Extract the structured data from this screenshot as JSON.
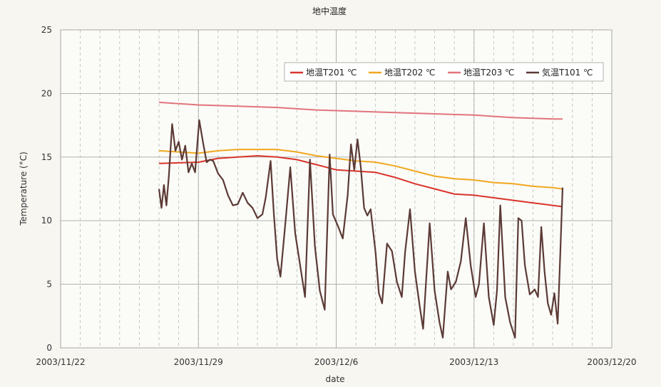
{
  "chart_data": {
    "type": "line",
    "title": "地中温度",
    "xlabel": "date",
    "ylabel": "Temperature (°C)",
    "ylim": [
      0,
      25
    ],
    "yticks": [
      "0",
      "5",
      "10",
      "15",
      "20",
      "25"
    ],
    "xlim": [
      "2003/11/22",
      "2003/12/20"
    ],
    "xticks": [
      "2003/11/22",
      "2003/11/29",
      "2003/12/6",
      "2003/12/13",
      "2003/12/20"
    ],
    "grid": true,
    "legend_position": "top-right",
    "series": [
      {
        "name": "地温T201 ℃",
        "color": "#d9342b",
        "points": [
          [
            "2003/11/27",
            14.5
          ],
          [
            "2003/11/29",
            14.6
          ],
          [
            "2003/11/30",
            14.9
          ],
          [
            "2003/12/1",
            15.0
          ],
          [
            "2003/12/2",
            15.1
          ],
          [
            "2003/12/3",
            15.0
          ],
          [
            "2003/12/4",
            14.8
          ],
          [
            "2003/12/5",
            14.4
          ],
          [
            "2003/12/6",
            14.0
          ],
          [
            "2003/12/7",
            13.9
          ],
          [
            "2003/12/8",
            13.8
          ],
          [
            "2003/12/9",
            13.4
          ],
          [
            "2003/12/10",
            12.9
          ],
          [
            "2003/12/11",
            12.5
          ],
          [
            "2003/12/12",
            12.1
          ],
          [
            "2003/12/13",
            12.0
          ],
          [
            "2003/12/14",
            11.8
          ],
          [
            "2003/12/15",
            11.6
          ],
          [
            "2003/12/16",
            11.4
          ],
          [
            "2003/12/17",
            11.2
          ],
          [
            "2003/12/17 12:00",
            11.1
          ]
        ]
      },
      {
        "name": "地温T202 ℃",
        "color": "#f0a820",
        "points": [
          [
            "2003/11/27",
            15.5
          ],
          [
            "2003/11/28",
            15.4
          ],
          [
            "2003/11/29",
            15.3
          ],
          [
            "2003/11/30",
            15.5
          ],
          [
            "2003/12/1",
            15.6
          ],
          [
            "2003/12/2",
            15.6
          ],
          [
            "2003/12/3",
            15.6
          ],
          [
            "2003/12/4",
            15.4
          ],
          [
            "2003/12/5",
            15.1
          ],
          [
            "2003/12/6",
            14.9
          ],
          [
            "2003/12/7",
            14.7
          ],
          [
            "2003/12/8",
            14.6
          ],
          [
            "2003/12/9",
            14.3
          ],
          [
            "2003/12/10",
            13.9
          ],
          [
            "2003/12/11",
            13.5
          ],
          [
            "2003/12/12",
            13.3
          ],
          [
            "2003/12/13",
            13.2
          ],
          [
            "2003/12/14",
            13.0
          ],
          [
            "2003/12/15",
            12.9
          ],
          [
            "2003/12/16",
            12.7
          ],
          [
            "2003/12/17",
            12.6
          ],
          [
            "2003/12/17 12:00",
            12.5
          ]
        ]
      },
      {
        "name": "地温T203 ℃",
        "color": "#e2747c",
        "points": [
          [
            "2003/11/27",
            19.3
          ],
          [
            "2003/11/29",
            19.1
          ],
          [
            "2003/12/1",
            19.0
          ],
          [
            "2003/12/3",
            18.9
          ],
          [
            "2003/12/5",
            18.7
          ],
          [
            "2003/12/7",
            18.6
          ],
          [
            "2003/12/9",
            18.5
          ],
          [
            "2003/12/11",
            18.4
          ],
          [
            "2003/12/13",
            18.3
          ],
          [
            "2003/12/15",
            18.1
          ],
          [
            "2003/12/17",
            18.0
          ],
          [
            "2003/12/17 12:00",
            18.0
          ]
        ]
      },
      {
        "name": "気温T101 ℃",
        "color": "#5b3a36",
        "points": [
          [
            "2003/11/27 00:00",
            12.5
          ],
          [
            "2003/11/27 03:00",
            11.0
          ],
          [
            "2003/11/27 06:00",
            12.8
          ],
          [
            "2003/11/27 09:00",
            11.2
          ],
          [
            "2003/11/27 12:00",
            13.5
          ],
          [
            "2003/11/27 16:00",
            17.6
          ],
          [
            "2003/11/27 20:00",
            15.5
          ],
          [
            "2003/11/28 00:00",
            16.2
          ],
          [
            "2003/11/28 04:00",
            14.8
          ],
          [
            "2003/11/28 08:00",
            15.9
          ],
          [
            "2003/11/28 12:00",
            13.8
          ],
          [
            "2003/11/28 16:00",
            14.5
          ],
          [
            "2003/11/28 20:00",
            13.8
          ],
          [
            "2003/11/29 01:00",
            17.9
          ],
          [
            "2003/11/29 06:00",
            16.0
          ],
          [
            "2003/11/29 10:00",
            14.6
          ],
          [
            "2003/11/29 14:00",
            14.8
          ],
          [
            "2003/11/29 18:00",
            14.7
          ],
          [
            "2003/11/30 00:00",
            13.7
          ],
          [
            "2003/11/30 06:00",
            13.2
          ],
          [
            "2003/11/30 12:00",
            12.0
          ],
          [
            "2003/11/30 18:00",
            11.2
          ],
          [
            "2003/12/1 00:00",
            11.3
          ],
          [
            "2003/12/1 06:00",
            12.2
          ],
          [
            "2003/12/1 12:00",
            11.4
          ],
          [
            "2003/12/1 18:00",
            11.0
          ],
          [
            "2003/12/2 00:00",
            10.2
          ],
          [
            "2003/12/2 06:00",
            10.5
          ],
          [
            "2003/12/2 10:00",
            11.8
          ],
          [
            "2003/12/2 16:00",
            14.7
          ],
          [
            "2003/12/2 20:00",
            10.5
          ],
          [
            "2003/12/3 00:00",
            7.0
          ],
          [
            "2003/12/3 04:00",
            5.6
          ],
          [
            "2003/12/3 10:00",
            9.8
          ],
          [
            "2003/12/3 16:00",
            14.2
          ],
          [
            "2003/12/3 22:00",
            9.0
          ],
          [
            "2003/12/4 04:00",
            6.5
          ],
          [
            "2003/12/4 10:00",
            4.0
          ],
          [
            "2003/12/4 16:00",
            14.8
          ],
          [
            "2003/12/4 22:00",
            8.0
          ],
          [
            "2003/12/5 04:00",
            4.5
          ],
          [
            "2003/12/5 10:00",
            3.0
          ],
          [
            "2003/12/5 16:00",
            15.2
          ],
          [
            "2003/12/5 20:00",
            10.5
          ],
          [
            "2003/12/6 02:00",
            9.6
          ],
          [
            "2003/12/6 08:00",
            8.6
          ],
          [
            "2003/12/6 14:00",
            12.0
          ],
          [
            "2003/12/6 18:00",
            16.0
          ],
          [
            "2003/12/6 22:00",
            14.0
          ],
          [
            "2003/12/7 02:00",
            16.4
          ],
          [
            "2003/12/7 06:00",
            14.2
          ],
          [
            "2003/12/7 10:00",
            11.0
          ],
          [
            "2003/12/7 14:00",
            10.4
          ],
          [
            "2003/12/7 18:00",
            10.9
          ],
          [
            "2003/12/8 00:00",
            7.5
          ],
          [
            "2003/12/8 04:00",
            4.3
          ],
          [
            "2003/12/8 08:00",
            3.5
          ],
          [
            "2003/12/8 14:00",
            8.2
          ],
          [
            "2003/12/8 20:00",
            7.6
          ],
          [
            "2003/12/9 02:00",
            5.2
          ],
          [
            "2003/12/9 08:00",
            4.0
          ],
          [
            "2003/12/9 12:00",
            7.5
          ],
          [
            "2003/12/9 18:00",
            10.9
          ],
          [
            "2003/12/10 00:00",
            6.0
          ],
          [
            "2003/12/10 06:00",
            3.2
          ],
          [
            "2003/12/10 10:00",
            1.5
          ],
          [
            "2003/12/10 18:00",
            9.8
          ],
          [
            "2003/12/11 00:00",
            4.5
          ],
          [
            "2003/12/11 06:00",
            2.0
          ],
          [
            "2003/12/11 10:00",
            0.8
          ],
          [
            "2003/12/11 16:00",
            6.0
          ],
          [
            "2003/12/11 20:00",
            4.6
          ],
          [
            "2003/12/12 02:00",
            5.2
          ],
          [
            "2003/12/12 08:00",
            6.8
          ],
          [
            "2003/12/12 14:00",
            10.2
          ],
          [
            "2003/12/12 20:00",
            6.5
          ],
          [
            "2003/12/13 02:00",
            4.0
          ],
          [
            "2003/12/13 06:00",
            5.0
          ],
          [
            "2003/12/13 12:00",
            9.8
          ],
          [
            "2003/12/13 18:00",
            4.0
          ],
          [
            "2003/12/14 00:00",
            1.8
          ],
          [
            "2003/12/14 04:00",
            4.5
          ],
          [
            "2003/12/14 08:00",
            11.2
          ],
          [
            "2003/12/14 14:00",
            4.0
          ],
          [
            "2003/12/14 20:00",
            2.0
          ],
          [
            "2003/12/15 02:00",
            0.8
          ],
          [
            "2003/12/15 06:00",
            10.2
          ],
          [
            "2003/12/15 10:00",
            10.0
          ],
          [
            "2003/12/15 14:00",
            6.5
          ],
          [
            "2003/12/15 20:00",
            4.2
          ],
          [
            "2003/12/16 02:00",
            4.6
          ],
          [
            "2003/12/16 06:00",
            4.0
          ],
          [
            "2003/12/16 10:00",
            9.5
          ],
          [
            "2003/12/16 14:00",
            6.0
          ],
          [
            "2003/12/16 18:00",
            3.5
          ],
          [
            "2003/12/16 22:00",
            2.6
          ],
          [
            "2003/12/17 02:00",
            4.3
          ],
          [
            "2003/12/17 06:00",
            1.9
          ],
          [
            "2003/12/17 09:00",
            7.0
          ],
          [
            "2003/12/17 12:00",
            12.6
          ]
        ]
      }
    ]
  }
}
